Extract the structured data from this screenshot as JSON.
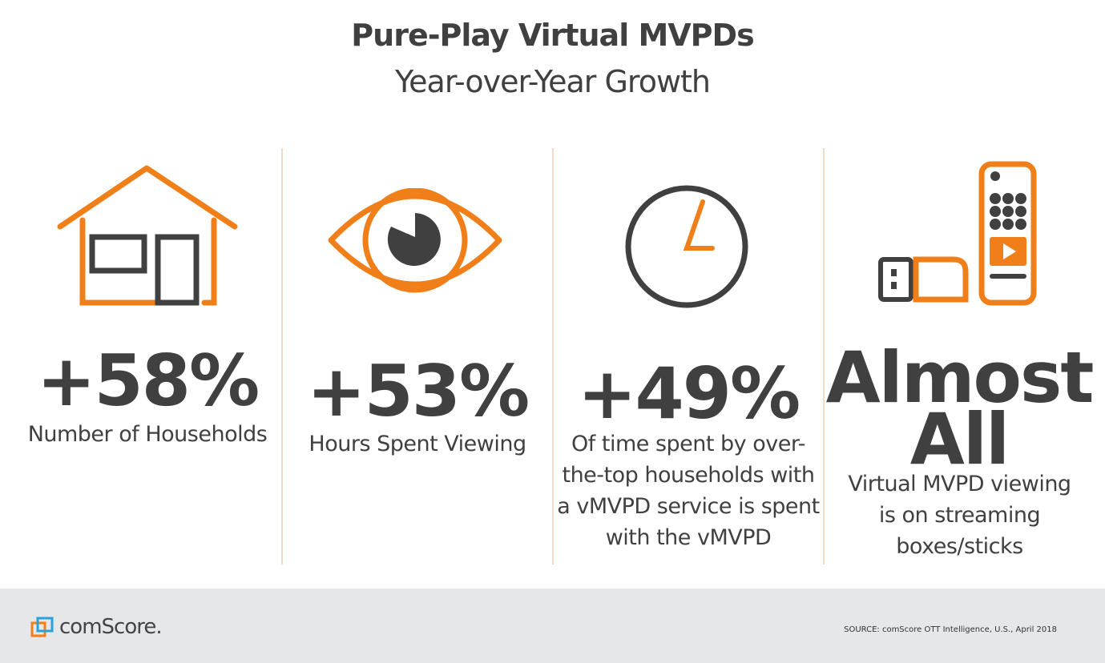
{
  "header": {
    "title": "Pure-Play Virtual MVPDs",
    "subtitle": "Year-over-Year Growth"
  },
  "colors": {
    "accent": "#f07f1a",
    "text": "#404041",
    "divider": "#f3dcc6",
    "footer": "#e6e7e9"
  },
  "stats": [
    {
      "icon": "house-with-screens-icon",
      "value": "+58%",
      "label": "Number of Households"
    },
    {
      "icon": "eye-icon",
      "value": "+53%",
      "label": "Hours Spent Viewing"
    },
    {
      "icon": "clock-icon",
      "value": "+49%",
      "label": "Of time spent by over-the-top households with a vMVPD service is spent with the vMVPD"
    },
    {
      "icon": "streaming-stick-remote-icon",
      "value_line1": "Almost",
      "value_line2": "All",
      "label": "Virtual MVPD viewing is on streaming boxes/sticks"
    }
  ],
  "footer": {
    "logo": "comScore.",
    "source": "SOURCE: comScore OTT Intelligence, U.S., April 2018"
  }
}
